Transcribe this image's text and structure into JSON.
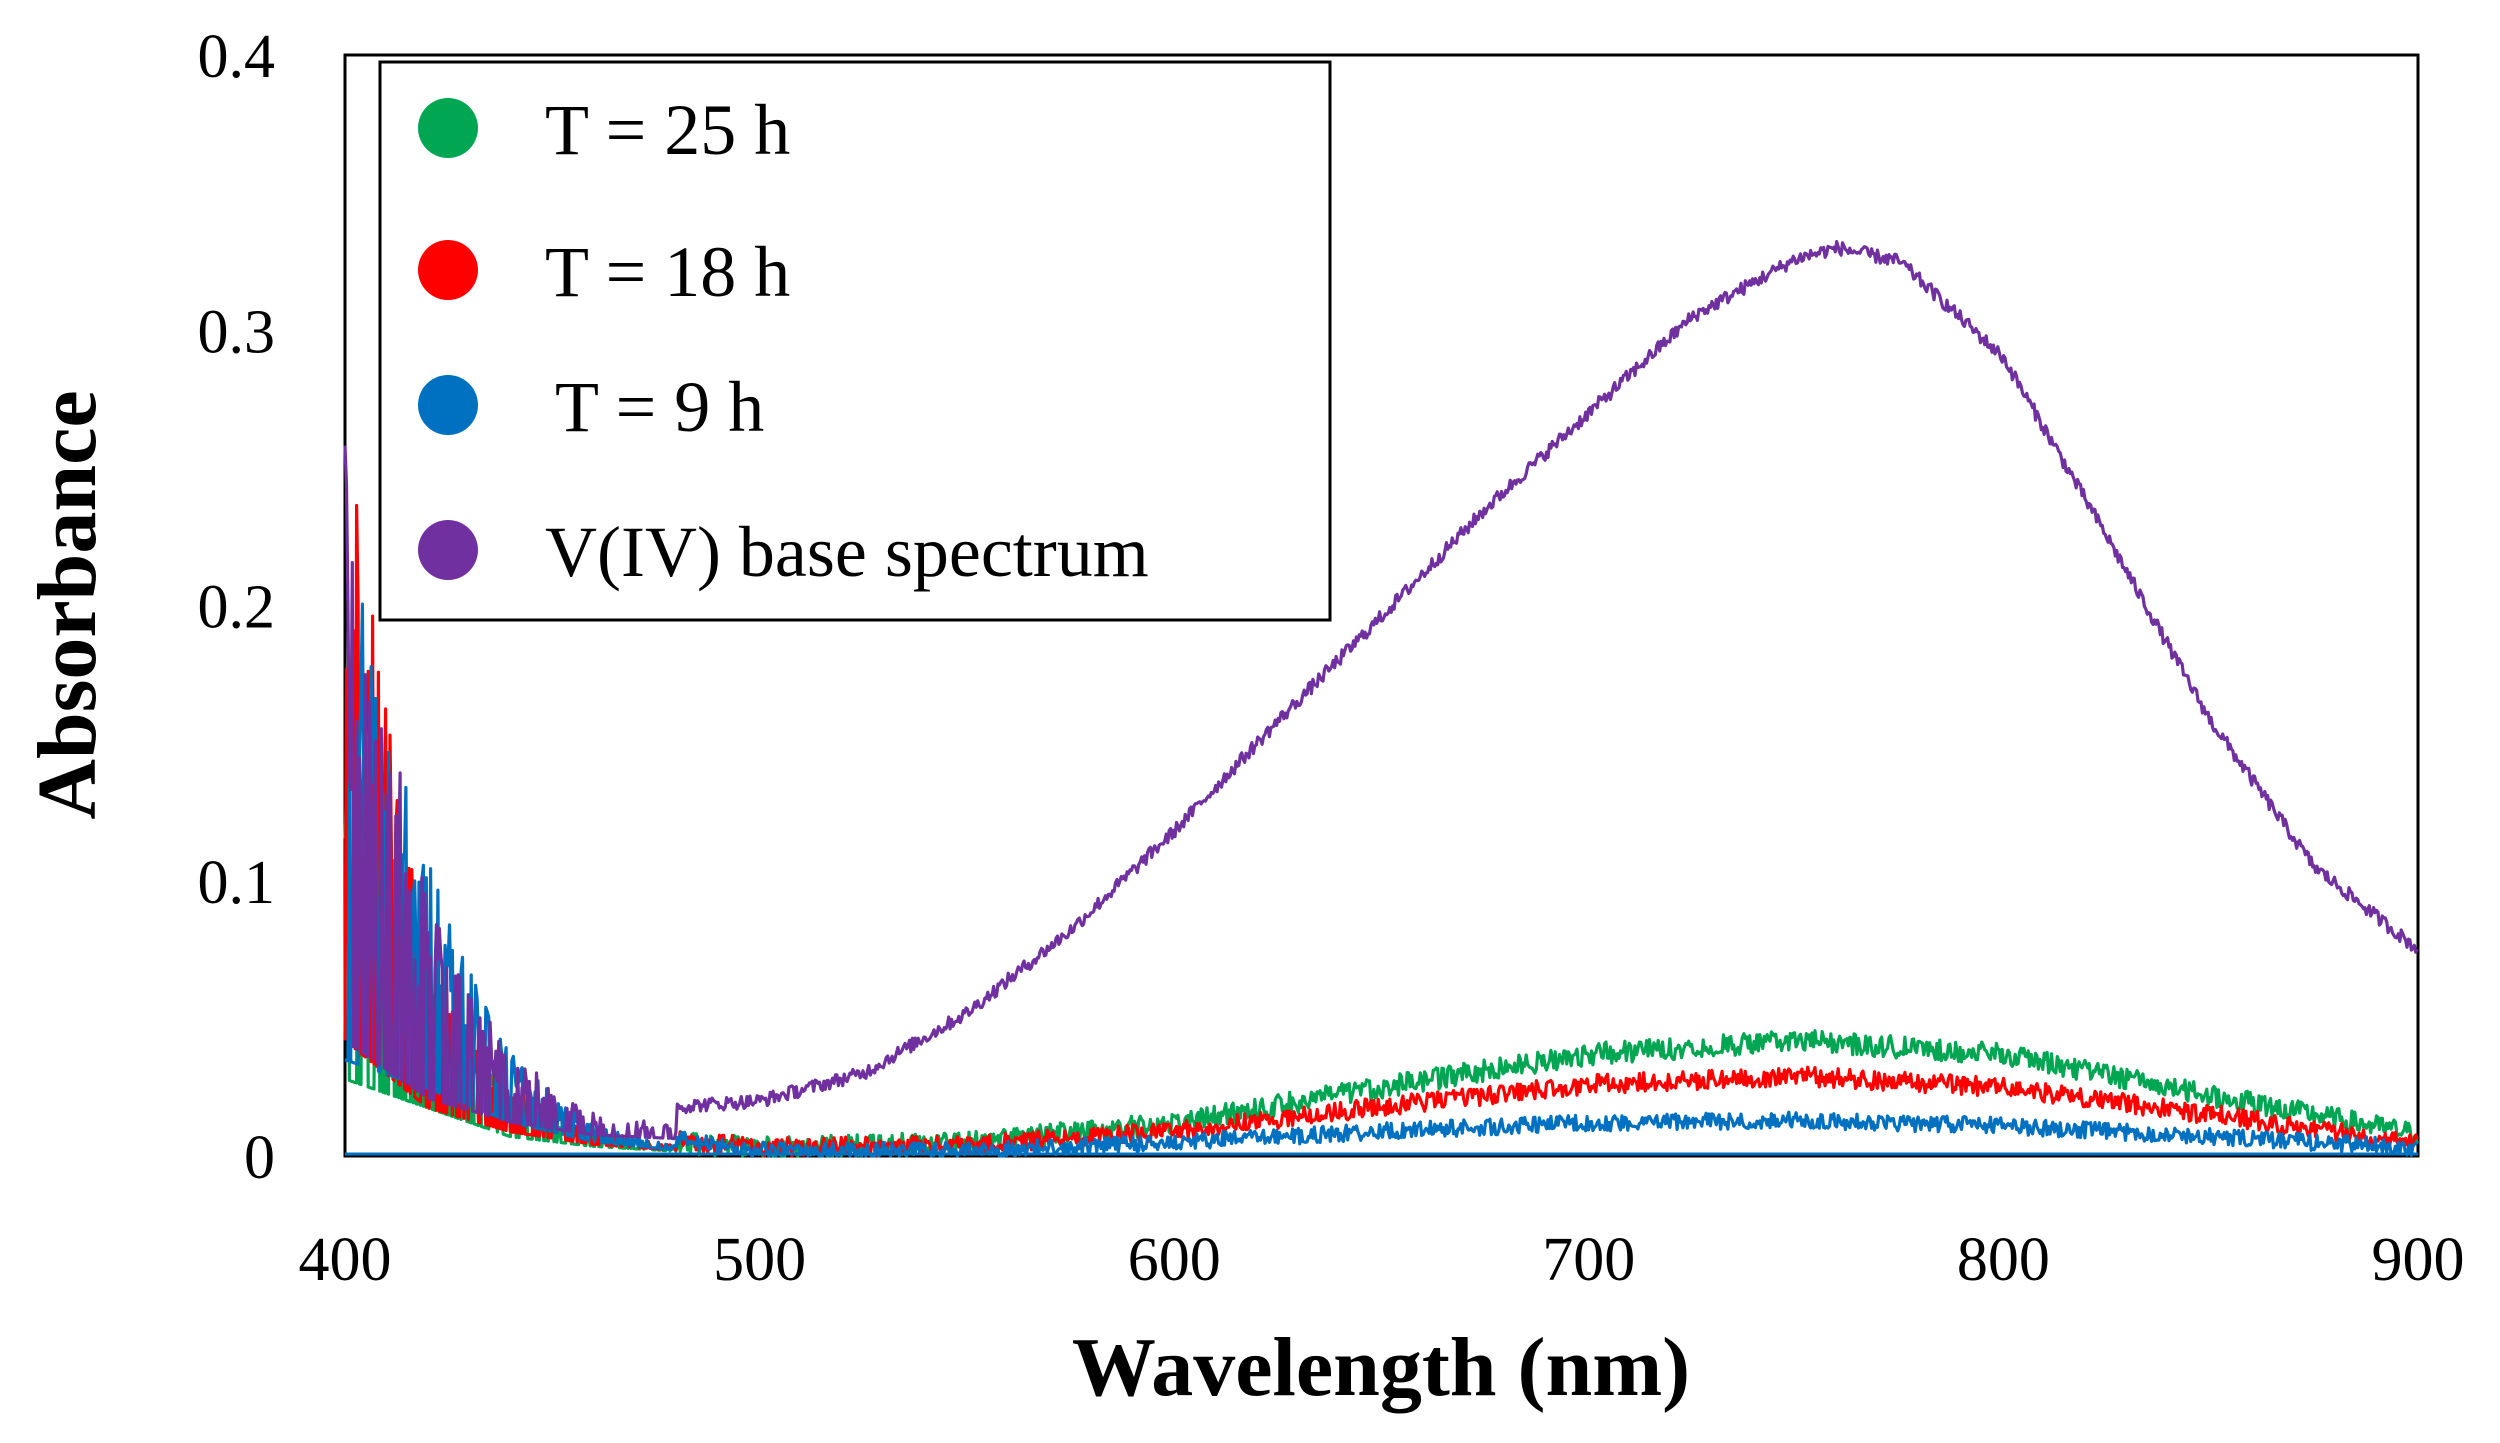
{
  "chart_data": {
    "type": "line",
    "title": "",
    "xlabel": "Wavelength (nm)",
    "ylabel": "Absorbance",
    "xlim": [
      400,
      900
    ],
    "ylim": [
      0,
      0.4
    ],
    "x_ticks": [
      "400",
      "500",
      "600",
      "700",
      "800",
      "900"
    ],
    "y_ticks": [
      "0",
      "0.1",
      "0.2",
      "0.3",
      "0.4"
    ],
    "grid": false,
    "legend_position": "top-left",
    "series": [
      {
        "name": "T = 25 h",
        "color": "#00a651",
        "x": [
          400,
          420,
          440,
          460,
          480,
          500,
          550,
          600,
          650,
          700,
          750,
          800,
          850,
          900
        ],
        "y": [
          0.08,
          0.05,
          0.02,
          0.01,
          0.005,
          0.003,
          0.005,
          0.012,
          0.025,
          0.037,
          0.042,
          0.037,
          0.022,
          0.008
        ],
        "noise": 0.004
      },
      {
        "name": "T = 18 h",
        "color": "#ff0000",
        "x": [
          400,
          420,
          440,
          460,
          480,
          500,
          550,
          600,
          650,
          700,
          750,
          800,
          850,
          900
        ],
        "y": [
          0.12,
          0.05,
          0.025,
          0.012,
          0.006,
          0.003,
          0.004,
          0.009,
          0.018,
          0.026,
          0.029,
          0.025,
          0.015,
          0.005
        ],
        "noise": 0.0035
      },
      {
        "name": "T = 9 h",
        "color": "#0070c0",
        "x": [
          400,
          420,
          440,
          460,
          480,
          500,
          550,
          600,
          650,
          700,
          750,
          800,
          850,
          900
        ],
        "y": [
          0.1,
          0.07,
          0.035,
          0.015,
          0.006,
          0.002,
          0.002,
          0.005,
          0.009,
          0.012,
          0.013,
          0.011,
          0.007,
          0.003
        ],
        "noise": 0.003
      },
      {
        "name": "V(IV) base spectrum",
        "color": "#7030a0",
        "x": [
          400,
          420,
          440,
          460,
          480,
          500,
          525,
          550,
          575,
          600,
          625,
          650,
          675,
          700,
          725,
          750,
          760,
          775,
          800,
          825,
          850,
          875,
          900
        ],
        "y": [
          0.12,
          0.06,
          0.035,
          0.022,
          0.018,
          0.02,
          0.03,
          0.052,
          0.082,
          0.118,
          0.158,
          0.196,
          0.235,
          0.27,
          0.305,
          0.326,
          0.33,
          0.325,
          0.29,
          0.225,
          0.158,
          0.105,
          0.075
        ],
        "noise": 0.0025
      }
    ]
  }
}
